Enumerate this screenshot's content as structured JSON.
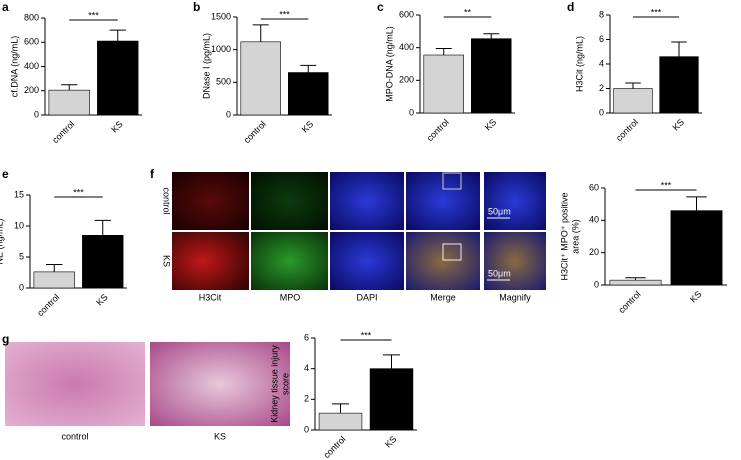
{
  "chart_data": [
    {
      "type": "bar",
      "panel": "a",
      "ylabel": [
        "cf.DNA (ng/mL)"
      ],
      "categories": [
        "control",
        "KS"
      ],
      "values": [
        205,
        610
      ],
      "errors": [
        45,
        90
      ],
      "colors": [
        "#d4d4d4",
        "#000000"
      ],
      "ylim": [
        0,
        800
      ],
      "yticks": [
        0,
        200,
        400,
        600,
        800
      ],
      "significance": "***"
    },
    {
      "type": "bar",
      "panel": "b",
      "ylabel": [
        "DNase I (pg/mL)"
      ],
      "categories": [
        "control",
        "KS"
      ],
      "values": [
        1120,
        650
      ],
      "errors": [
        260,
        110
      ],
      "colors": [
        "#d4d4d4",
        "#000000"
      ],
      "ylim": [
        0,
        1500
      ],
      "yticks": [
        0,
        500,
        1000,
        1500
      ],
      "significance": "***"
    },
    {
      "type": "bar",
      "panel": "c",
      "ylabel": [
        "MPO-DNA (ng/mL)"
      ],
      "categories": [
        "control",
        "KS"
      ],
      "values": [
        355,
        455
      ],
      "errors": [
        40,
        30
      ],
      "colors": [
        "#d4d4d4",
        "#000000"
      ],
      "ylim": [
        0,
        600
      ],
      "yticks": [
        0,
        200,
        400,
        600
      ],
      "significance": "**"
    },
    {
      "type": "bar",
      "panel": "d",
      "ylabel": [
        "H3Cit (ng/mL)"
      ],
      "categories": [
        "control",
        "KS"
      ],
      "values": [
        2.0,
        4.6
      ],
      "errors": [
        0.45,
        1.2
      ],
      "colors": [
        "#d4d4d4",
        "#000000"
      ],
      "ylim": [
        0,
        8
      ],
      "yticks": [
        0,
        2,
        4,
        6,
        8
      ],
      "significance": "***"
    },
    {
      "type": "bar",
      "panel": "e",
      "ylabel": [
        "NE (ng/mL)"
      ],
      "categories": [
        "control",
        "KS"
      ],
      "values": [
        2.6,
        8.5
      ],
      "errors": [
        1.2,
        2.4
      ],
      "colors": [
        "#d4d4d4",
        "#000000"
      ],
      "ylim": [
        0,
        15
      ],
      "yticks": [
        0,
        5,
        10,
        15
      ],
      "significance": "***"
    },
    {
      "type": "bar",
      "ylabel": [
        "H3Cit⁺ MPO⁺ positive",
        "area (%)"
      ],
      "categories": [
        "control",
        "KS"
      ],
      "values": [
        3,
        46
      ],
      "errors": [
        1.5,
        8.5
      ],
      "colors": [
        "#d4d4d4",
        "#000000"
      ],
      "ylim": [
        0,
        60
      ],
      "yticks": [
        0,
        20,
        40,
        60
      ],
      "significance": "***"
    },
    {
      "type": "bar",
      "ylabel": [
        "Kidney tissue injury",
        "score"
      ],
      "categories": [
        "control",
        "KS"
      ],
      "values": [
        1.1,
        4.0
      ],
      "errors": [
        0.6,
        0.9
      ],
      "colors": [
        "#d4d4d4",
        "#000000"
      ],
      "ylim": [
        0,
        6
      ],
      "yticks": [
        0,
        2,
        4,
        6
      ],
      "significance": "***"
    }
  ],
  "figure": {
    "f": {
      "panel": "f",
      "columns": [
        "H3Cit",
        "MPO",
        "DAPI",
        "Merge",
        "Magnify"
      ],
      "rows": [
        "control",
        "KS"
      ],
      "scale": [
        "50μm",
        "50μm"
      ]
    },
    "g": {
      "panel": "g",
      "images": [
        "control",
        "KS"
      ]
    }
  }
}
